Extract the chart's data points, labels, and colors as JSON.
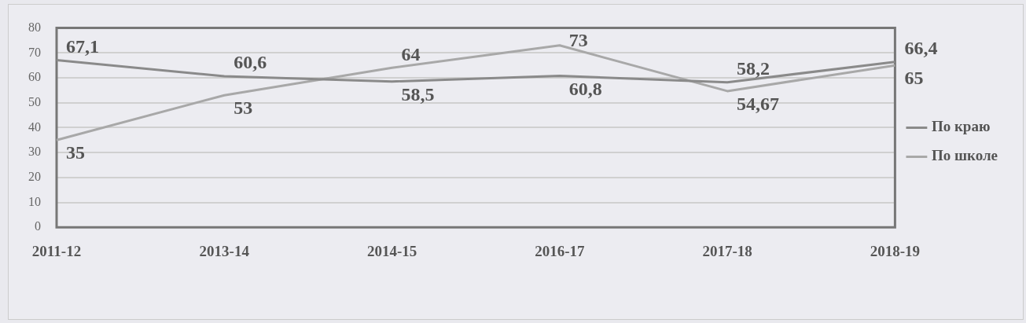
{
  "chart_data": {
    "type": "line",
    "categories": [
      "2011-12",
      "2013-14",
      "2014-15",
      "2016-17",
      "2017-18",
      "2018-19"
    ],
    "series": [
      {
        "name": "По краю",
        "color": "#8a8a8a",
        "values": [
          67.1,
          60.6,
          58.5,
          60.8,
          58.2,
          66.4
        ],
        "value_labels": [
          "67,1",
          "60,6",
          "58,5",
          "60,8",
          "58,2",
          "66,4"
        ]
      },
      {
        "name": "По школе",
        "color": "#a8a8a8",
        "values": [
          35,
          53,
          64,
          73,
          54.67,
          65
        ],
        "value_labels": [
          "35",
          "53",
          "64",
          "73",
          "54,67",
          "65"
        ]
      }
    ],
    "ylim": [
      0,
      80
    ],
    "yticks": [
      0,
      10,
      20,
      30,
      40,
      50,
      60,
      70,
      80
    ],
    "grid": "y",
    "legend": "right",
    "marker": "none",
    "line_style": "solid"
  }
}
